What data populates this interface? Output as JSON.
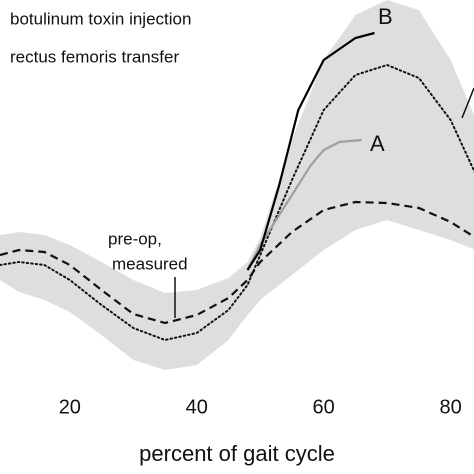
{
  "chart_data": {
    "type": "line",
    "xlabel": "percent of gait cycle",
    "annotations": [
      "botulinum toxin injection",
      "rectus femoris transfer",
      "pre-op,",
      "measured"
    ],
    "xlim": [
      9,
      84
    ],
    "ylim": [
      0,
      375
    ],
    "xticks": [
      20,
      40,
      60,
      80
    ],
    "band": {
      "color": "#dedede",
      "x": [
        9,
        12,
        16,
        20,
        25,
        30,
        35,
        40,
        45,
        48,
        50,
        55,
        60,
        65,
        70,
        75,
        80,
        84
      ],
      "upper": [
        140,
        143,
        140,
        130,
        113,
        95,
        82,
        85,
        97,
        113,
        137,
        235,
        315,
        360,
        375,
        365,
        315,
        255
      ],
      "lower": [
        95,
        83,
        75,
        63,
        40,
        15,
        5,
        10,
        35,
        60,
        75,
        100,
        125,
        145,
        155,
        145,
        135,
        125
      ]
    },
    "series": [
      {
        "style": "dotted",
        "color": "#111111",
        "x": [
          9,
          12,
          16,
          20,
          25,
          30,
          35,
          40,
          45,
          48,
          50,
          55,
          60,
          65,
          70,
          75,
          80,
          84
        ],
        "values": [
          110,
          113,
          110,
          95,
          70,
          47,
          35,
          42,
          65,
          90,
          120,
          195,
          265,
          300,
          310,
          297,
          255,
          200
        ]
      },
      {
        "style": "dashed",
        "color": "#111111",
        "x": [
          9,
          12,
          16,
          20,
          25,
          30,
          35,
          40,
          45,
          48,
          50,
          55,
          60,
          65,
          70,
          75,
          80,
          84
        ],
        "values": [
          120,
          125,
          123,
          110,
          85,
          61,
          52,
          60,
          77,
          95,
          113,
          143,
          165,
          173,
          172,
          167,
          153,
          137
        ]
      },
      {
        "name": "A",
        "style": "solid",
        "color": "#a0a0a0",
        "x": [
          48,
          50,
          55,
          58,
          60,
          62.5,
          66
        ],
        "values": [
          105,
          130,
          180,
          210,
          225,
          233,
          235
        ]
      },
      {
        "name": "B",
        "style": "solid",
        "color": "#000000",
        "x": [
          48,
          50,
          53,
          56,
          60,
          65,
          68
        ],
        "values": [
          105,
          125,
          190,
          265,
          315,
          337,
          342
        ]
      }
    ]
  }
}
